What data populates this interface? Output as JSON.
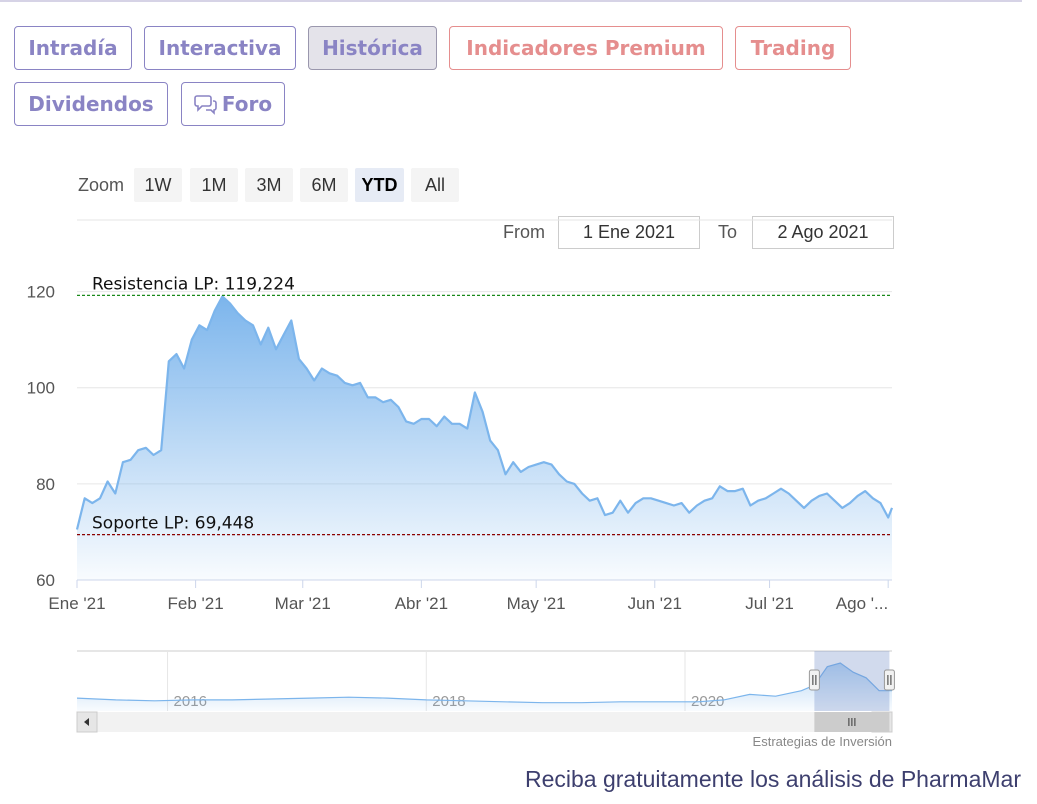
{
  "tabs": [
    {
      "label": "Intradía",
      "state": "normal"
    },
    {
      "label": "Interactiva",
      "state": "normal"
    },
    {
      "label": "Histórica",
      "state": "active"
    },
    {
      "label": "Indicadores Premium",
      "state": "premium"
    },
    {
      "label": "Trading",
      "state": "premium"
    },
    {
      "label": "Dividendos",
      "state": "normal"
    },
    {
      "label": "Foro",
      "state": "normal",
      "icon": "chat-bubbles-icon"
    }
  ],
  "zoom": {
    "label": "Zoom",
    "buttons": [
      "1W",
      "1M",
      "3M",
      "6M",
      "YTD",
      "All"
    ],
    "selected": "YTD"
  },
  "range": {
    "from_label": "From",
    "from_value": "1 Ene 2021",
    "to_label": "To",
    "to_value": "2 Ago 2021"
  },
  "colors": {
    "series": "#7cb5ec",
    "resistance": "#1a8a1a",
    "support": "#8b0000",
    "tab_text": "#8a84c4",
    "tab_premium": "#e58e8e"
  },
  "chart_data": {
    "type": "area",
    "ylim": [
      60,
      122
    ],
    "yticks": [
      "120",
      "100",
      "80",
      "60"
    ],
    "ytick_values": [
      120,
      100,
      80,
      60
    ],
    "xticks": [
      "Ene '21",
      "Feb '21",
      "Mar '21",
      "Abr '21",
      "May '21",
      "Jun '21",
      "Jul '21",
      "Ago '..."
    ],
    "xtick_dates": [
      "2021-01-01",
      "2021-02-01",
      "2021-03-01",
      "2021-04-01",
      "2021-05-01",
      "2021-06-01",
      "2021-07-01",
      "2021-08-01"
    ],
    "x_range": [
      "2021-01-01",
      "2021-08-02"
    ],
    "x": [
      "2021-01-01",
      "2021-01-03",
      "2021-01-05",
      "2021-01-07",
      "2021-01-09",
      "2021-01-11",
      "2021-01-13",
      "2021-01-15",
      "2021-01-17",
      "2021-01-19",
      "2021-01-21",
      "2021-01-23",
      "2021-01-25",
      "2021-01-27",
      "2021-01-29",
      "2021-01-31",
      "2021-02-02",
      "2021-02-04",
      "2021-02-06",
      "2021-02-08",
      "2021-02-10",
      "2021-02-12",
      "2021-02-14",
      "2021-02-16",
      "2021-02-18",
      "2021-02-20",
      "2021-02-22",
      "2021-02-24",
      "2021-02-26",
      "2021-02-28",
      "2021-03-02",
      "2021-03-04",
      "2021-03-06",
      "2021-03-08",
      "2021-03-10",
      "2021-03-12",
      "2021-03-14",
      "2021-03-16",
      "2021-03-18",
      "2021-03-20",
      "2021-03-22",
      "2021-03-24",
      "2021-03-26",
      "2021-03-28",
      "2021-03-30",
      "2021-04-01",
      "2021-04-03",
      "2021-04-05",
      "2021-04-07",
      "2021-04-09",
      "2021-04-11",
      "2021-04-13",
      "2021-04-15",
      "2021-04-17",
      "2021-04-19",
      "2021-04-21",
      "2021-04-23",
      "2021-04-25",
      "2021-04-27",
      "2021-04-29",
      "2021-05-01",
      "2021-05-03",
      "2021-05-05",
      "2021-05-07",
      "2021-05-09",
      "2021-05-11",
      "2021-05-13",
      "2021-05-15",
      "2021-05-17",
      "2021-05-19",
      "2021-05-21",
      "2021-05-23",
      "2021-05-25",
      "2021-05-27",
      "2021-05-29",
      "2021-05-31",
      "2021-06-02",
      "2021-06-04",
      "2021-06-06",
      "2021-06-08",
      "2021-06-10",
      "2021-06-12",
      "2021-06-14",
      "2021-06-16",
      "2021-06-18",
      "2021-06-20",
      "2021-06-22",
      "2021-06-24",
      "2021-06-26",
      "2021-06-28",
      "2021-06-30",
      "2021-07-02",
      "2021-07-04",
      "2021-07-06",
      "2021-07-08",
      "2021-07-10",
      "2021-07-12",
      "2021-07-14",
      "2021-07-16",
      "2021-07-18",
      "2021-07-20",
      "2021-07-22",
      "2021-07-24",
      "2021-07-26",
      "2021-07-28",
      "2021-07-30",
      "2021-08-01",
      "2021-08-02"
    ],
    "series": [
      {
        "values": [
          70.5,
          77,
          76,
          77,
          80.5,
          78,
          84.5,
          85,
          87,
          87.5,
          86,
          87,
          105.5,
          107,
          104,
          110,
          113,
          112,
          116,
          119,
          117.5,
          115.5,
          114,
          113,
          109,
          112.5,
          108,
          111,
          114,
          106,
          104,
          101.5,
          104,
          103,
          102.5,
          101,
          100.5,
          101,
          98,
          98,
          97,
          97.5,
          96,
          93,
          92.5,
          93.5,
          93.5,
          92,
          94,
          92.5,
          92.5,
          91.5,
          99,
          95,
          89,
          87,
          82,
          84.5,
          82.5,
          83.5,
          84,
          84.5,
          84,
          82,
          80.5,
          80,
          78,
          76.5,
          77,
          73.5,
          74,
          76.5,
          74,
          76,
          77,
          77,
          76.5,
          76,
          75.5,
          76,
          74,
          75.5,
          76.5,
          77,
          79.5,
          78.5,
          78.5,
          79,
          75.5,
          76.5,
          77,
          78,
          79,
          78,
          76.5,
          75,
          76.5,
          77.5,
          78,
          76.5,
          75,
          76,
          77.5,
          78.5,
          77,
          76,
          73,
          75
        ]
      }
    ],
    "resistance": {
      "label": "Resistencia LP: 119,224",
      "value": 119.224
    },
    "support": {
      "label": "Soporte LP: 69,448",
      "value": 69.448
    },
    "navigator": {
      "labels": [
        "2016",
        "2018",
        "2020"
      ],
      "label_years": [
        2016,
        2018,
        2020
      ],
      "year_range": [
        2015.3,
        2021.6
      ],
      "selection_years": [
        2021.0,
        2021.58
      ],
      "y_range": [
        60,
        125
      ],
      "x_years": [
        2015.3,
        2015.6,
        2015.9,
        2016.2,
        2016.5,
        2016.8,
        2017.1,
        2017.4,
        2017.7,
        2018.0,
        2018.3,
        2018.6,
        2018.9,
        2019.2,
        2019.5,
        2019.8,
        2020.1,
        2020.3,
        2020.5,
        2020.7,
        2020.9,
        2021.0,
        2021.1,
        2021.2,
        2021.3,
        2021.4,
        2021.5,
        2021.6
      ],
      "values": [
        74,
        72,
        71,
        72,
        72,
        73,
        74,
        75,
        74,
        72,
        71,
        70,
        69,
        69,
        70,
        70,
        70,
        72,
        78,
        76,
        82,
        88,
        108,
        112,
        102,
        96,
        82,
        82
      ]
    }
  },
  "credit": "Estrategias de Inversión",
  "cta": "Reciba gratuitamente los análisis de PharmaMar"
}
